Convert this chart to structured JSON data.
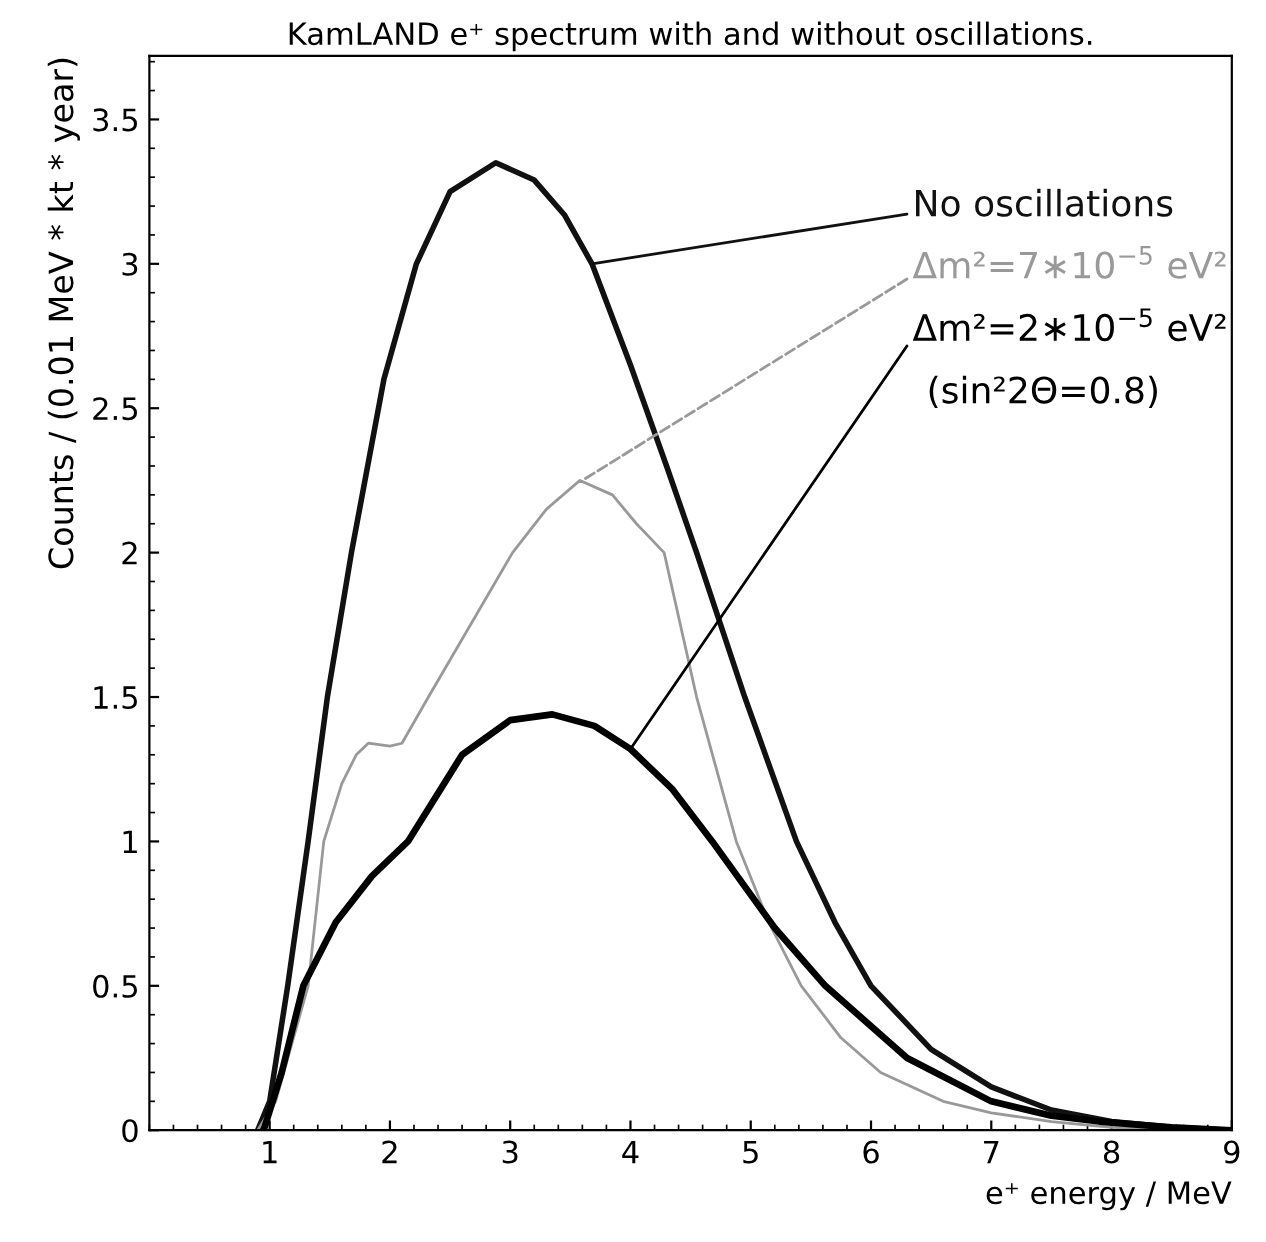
{
  "chart_data": {
    "type": "line",
    "title": "KamLAND e⁺ spectrum with and without oscillations.",
    "xlabel": "e⁺ energy / MeV",
    "ylabel": "Counts / (0.01 MeV * kt * year)",
    "xlim": [
      0,
      9
    ],
    "ylim": [
      0,
      3.72
    ],
    "xticks": [
      1,
      2,
      3,
      4,
      5,
      6,
      7,
      8,
      9
    ],
    "yticks": [
      0,
      0.5,
      1,
      1.5,
      2,
      2.5,
      3,
      3.5
    ],
    "grid": false,
    "legend": false,
    "marker": "none",
    "line_style": "solid",
    "series": [
      {
        "color": "#111111",
        "x": [
          0.9,
          1.0,
          1.15,
          1.32,
          1.48,
          1.68,
          1.95,
          2.22,
          2.5,
          2.88,
          3.2,
          3.45,
          3.68,
          4.0,
          4.3,
          4.55,
          4.95,
          5.38,
          5.7,
          6.0,
          6.5,
          7.0,
          7.5,
          8.0,
          8.5,
          9.0
        ],
        "values": [
          0,
          0.1,
          0.5,
          1.0,
          1.5,
          2.0,
          2.6,
          3.0,
          3.25,
          3.35,
          3.29,
          3.17,
          3.0,
          2.65,
          2.3,
          2.0,
          1.5,
          1.0,
          0.72,
          0.5,
          0.28,
          0.15,
          0.07,
          0.03,
          0.01,
          0
        ]
      },
      {
        "color": "#999999",
        "x": [
          0.9,
          1.05,
          1.32,
          1.45,
          1.6,
          1.72,
          1.82,
          2.0,
          2.1,
          2.32,
          2.6,
          3.02,
          3.3,
          3.58,
          3.85,
          4.05,
          4.28,
          4.55,
          4.88,
          5.15,
          5.42,
          5.75,
          6.08,
          6.6,
          7.0,
          7.5,
          8.0,
          8.5,
          9.0
        ],
        "values": [
          0,
          0.1,
          0.5,
          1.0,
          1.2,
          1.3,
          1.34,
          1.33,
          1.34,
          1.5,
          1.7,
          2.0,
          2.15,
          2.25,
          2.2,
          2.1,
          2.0,
          1.5,
          1.0,
          0.72,
          0.5,
          0.32,
          0.2,
          0.1,
          0.06,
          0.03,
          0.01,
          0.003,
          0
        ]
      },
      {
        "color": "#000000",
        "x": [
          0.95,
          1.1,
          1.28,
          1.55,
          1.85,
          2.15,
          2.6,
          3.0,
          3.35,
          3.7,
          4.0,
          4.35,
          4.68,
          5.2,
          5.62,
          6.3,
          7.0,
          7.5,
          7.9,
          8.5,
          9.0
        ],
        "values": [
          0,
          0.2,
          0.5,
          0.72,
          0.88,
          1.0,
          1.3,
          1.42,
          1.44,
          1.4,
          1.32,
          1.18,
          1.0,
          0.7,
          0.5,
          0.25,
          0.1,
          0.05,
          0.03,
          0.01,
          0
        ]
      }
    ],
    "annotations": [
      {
        "text": "No oscillations",
        "x": 3.68,
        "y": 3.0
      },
      {
        "text": "Δm²=7∗10$^{−5}$ eV²",
        "x": 3.6,
        "y": 2.25
      },
      {
        "text": "Δm²=2∗10$^{−5}$ eV²",
        "x": 4.0,
        "y": 1.32
      },
      "(sin²2Θ=0.8)"
    ]
  }
}
